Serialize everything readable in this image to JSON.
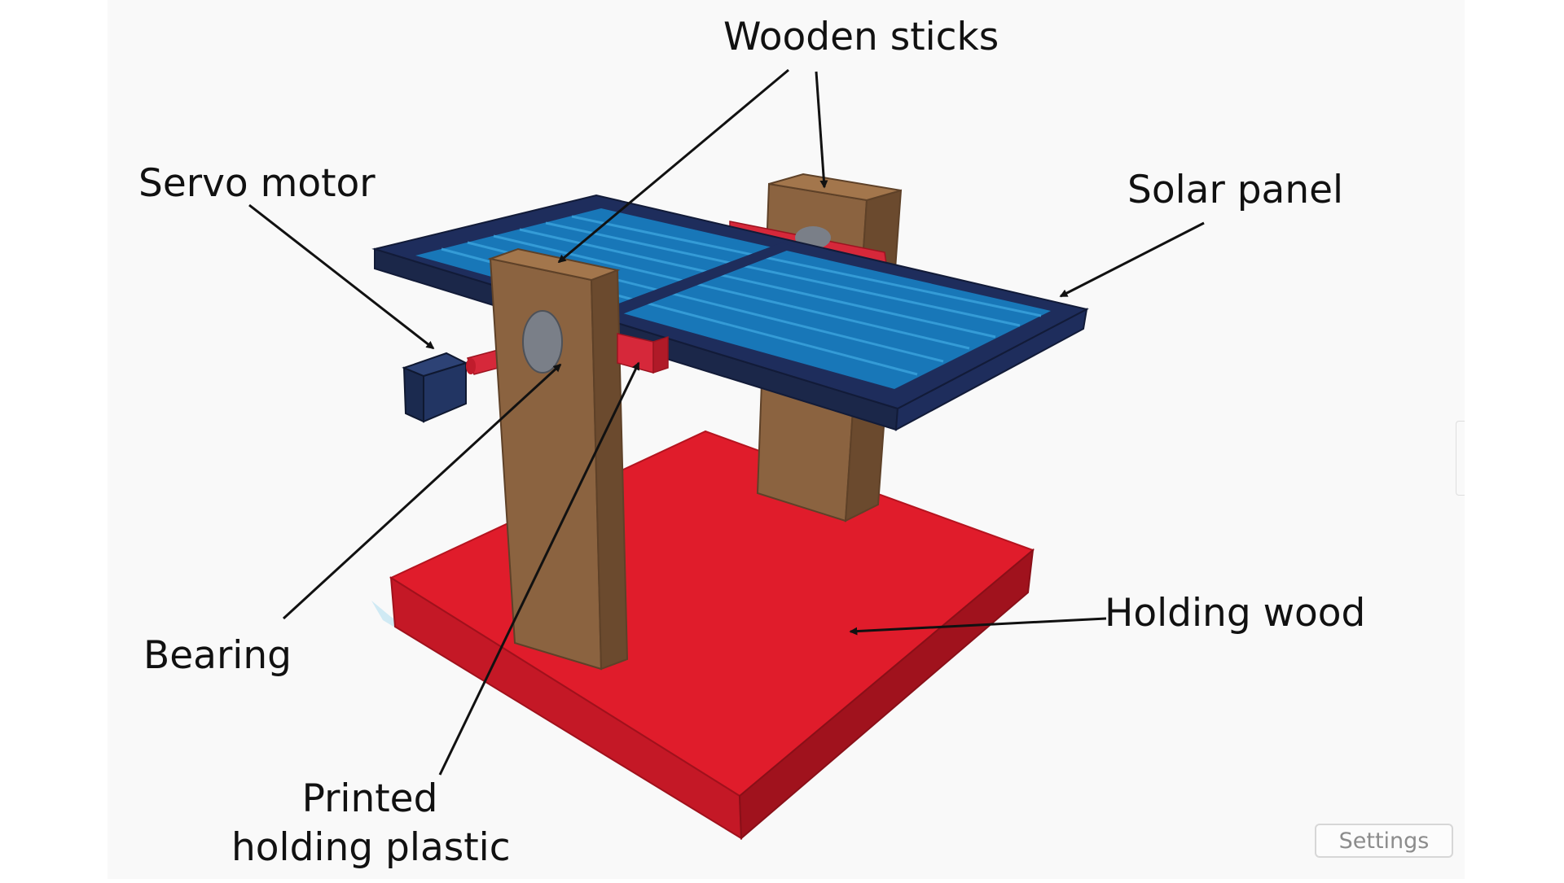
{
  "labels": {
    "wooden_sticks": "Wooden sticks",
    "servo_motor": "Servo motor",
    "solar_panel": "Solar panel",
    "holding_wood": "Holding wood",
    "bearing": "Bearing",
    "printed_holding_plastic_line1": "Printed",
    "printed_holding_plastic_line2": "holding plastic"
  },
  "ui": {
    "settings_label": "Settings"
  },
  "colors": {
    "canvas_bg": "#f9f9f9",
    "base_red": "#e01c2b",
    "wood": "#8b6340",
    "panel_frame": "#1e2d5c",
    "panel_cell": "#1877b8",
    "servo": "#1b2a4f",
    "arrow": "#111111"
  }
}
